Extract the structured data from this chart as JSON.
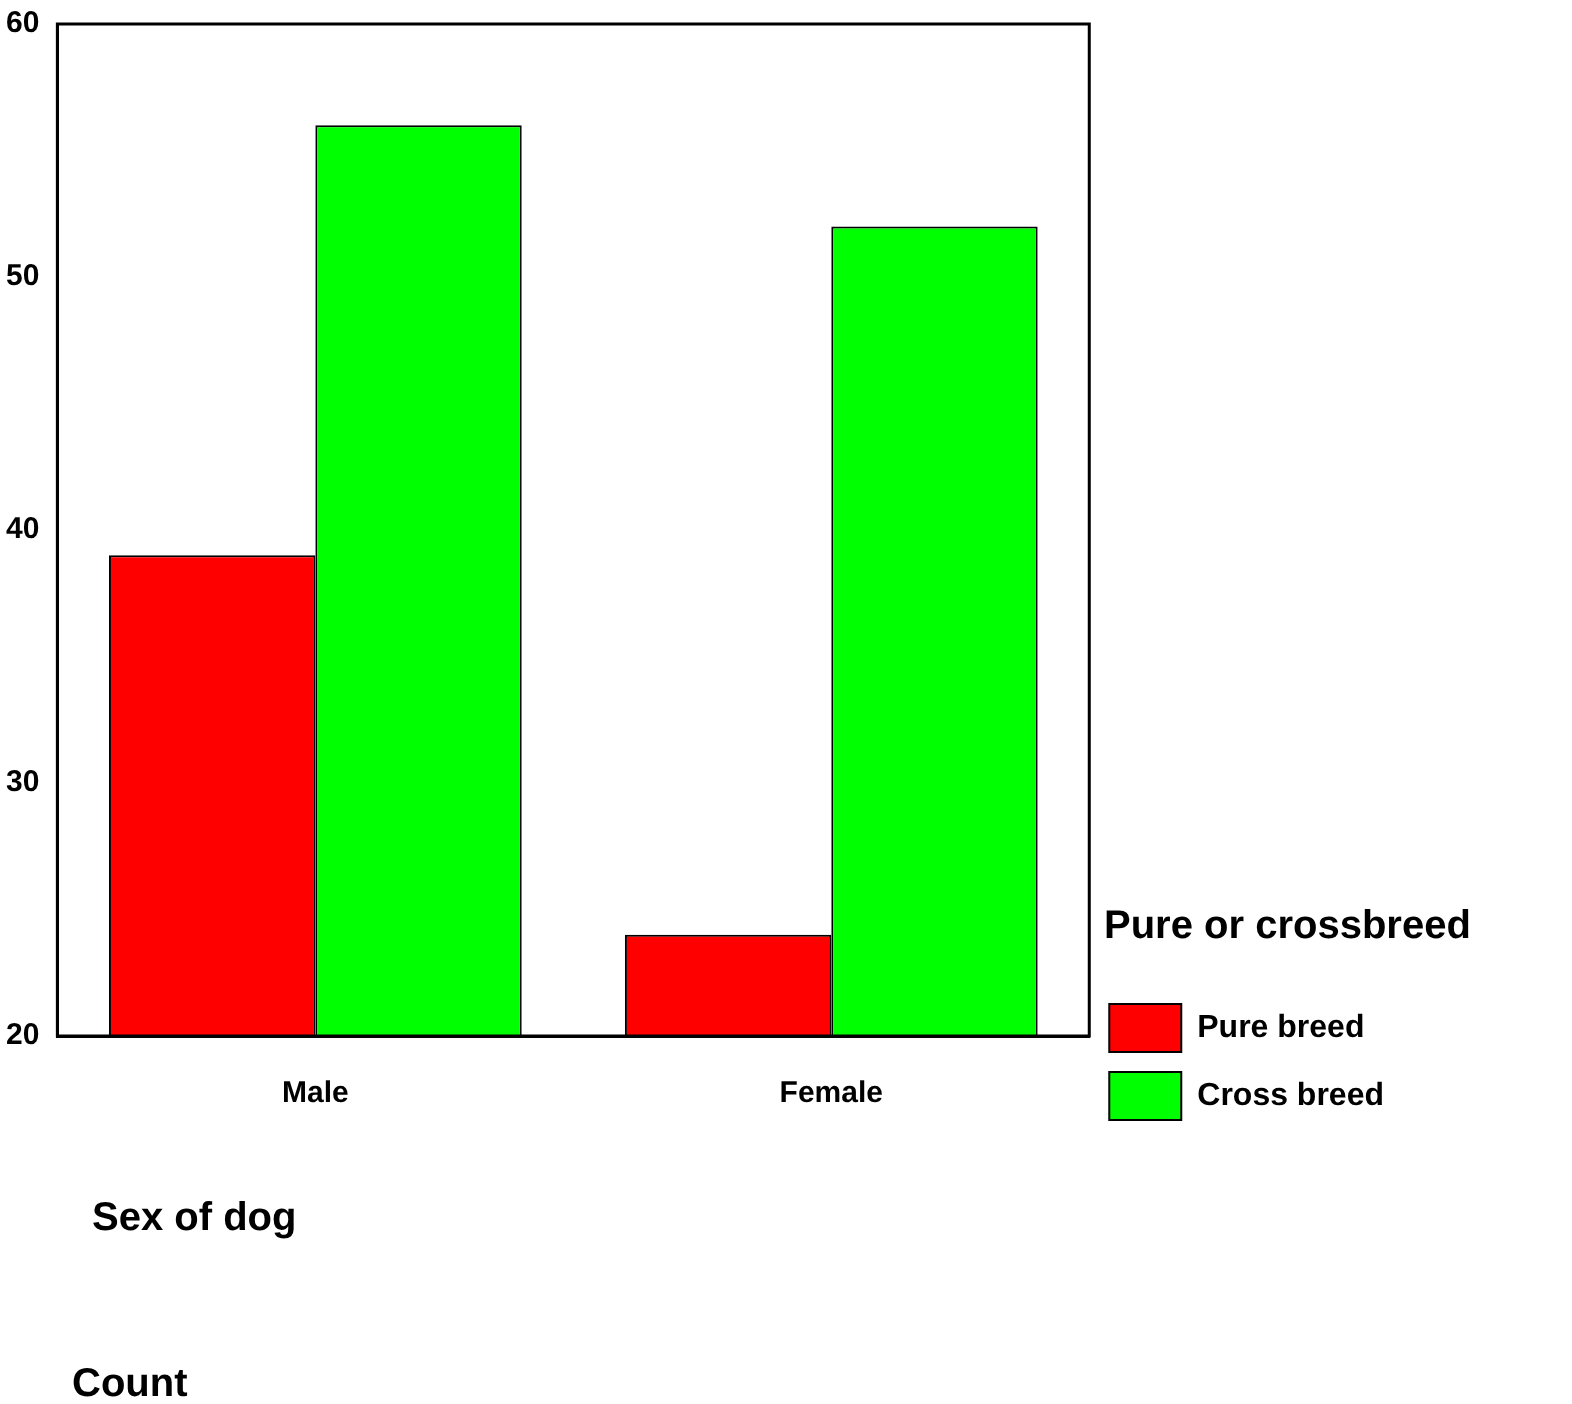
{
  "chart_data": {
    "type": "bar",
    "categories": [
      "Male",
      "Female"
    ],
    "series": [
      {
        "name": "Pure breed",
        "color": "#ff0000",
        "values": [
          39,
          24
        ]
      },
      {
        "name": "Cross breed",
        "color": "#00ff00",
        "values": [
          56,
          52
        ]
      }
    ],
    "xlabel": "Sex of dog",
    "annotations": [
      "Count"
    ],
    "legend_title": "Pure or crossbreed",
    "ylim": [
      20,
      60
    ],
    "yticks": [
      20,
      30,
      40,
      50,
      60
    ],
    "grid": false,
    "legend": "right"
  }
}
